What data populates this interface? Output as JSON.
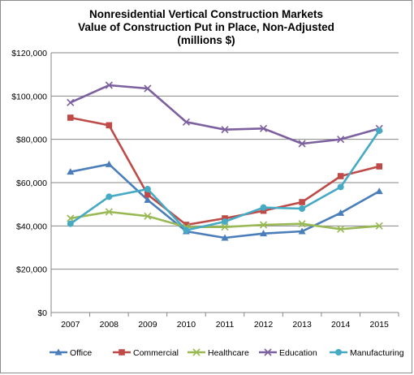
{
  "chart_data": {
    "type": "line",
    "title_lines": [
      "Nonresidential Vertical Construction Markets",
      "Value of Construction Put in Place, Non-Adjusted",
      "(millions $)"
    ],
    "categories": [
      "2007",
      "2008",
      "2009",
      "2010",
      "2011",
      "2012",
      "2013",
      "2014",
      "2015"
    ],
    "ylim": [
      0,
      120000
    ],
    "yticks": [
      0,
      20000,
      40000,
      60000,
      80000,
      100000,
      120000
    ],
    "ytick_labels": [
      "$0",
      "$20,000",
      "$40,000",
      "$60,000",
      "$80,000",
      "$100,000",
      "$120,000"
    ],
    "grid": true,
    "legend_position": "bottom",
    "series": [
      {
        "name": "Office",
        "color": "#4a7ebb",
        "marker": "triangle",
        "values": [
          65000,
          68500,
          52000,
          37500,
          34500,
          36500,
          37500,
          46000,
          56000
        ]
      },
      {
        "name": "Commercial",
        "color": "#be4b48",
        "marker": "square",
        "values": [
          90000,
          86500,
          54500,
          40500,
          43500,
          47000,
          51000,
          63000,
          67500
        ]
      },
      {
        "name": "Healthcare",
        "color": "#98b954",
        "marker": "x",
        "values": [
          43500,
          46500,
          44500,
          39500,
          39500,
          40500,
          41000,
          38500,
          40000
        ]
      },
      {
        "name": "Education",
        "color": "#7d60a0",
        "marker": "x",
        "values": [
          97000,
          105000,
          103500,
          88000,
          84500,
          85000,
          78000,
          80000,
          85000
        ]
      },
      {
        "name": "Manufacturing",
        "color": "#46aac5",
        "marker": "circle",
        "values": [
          41000,
          53500,
          57000,
          38000,
          42000,
          48500,
          48000,
          58000,
          84000
        ]
      }
    ]
  }
}
